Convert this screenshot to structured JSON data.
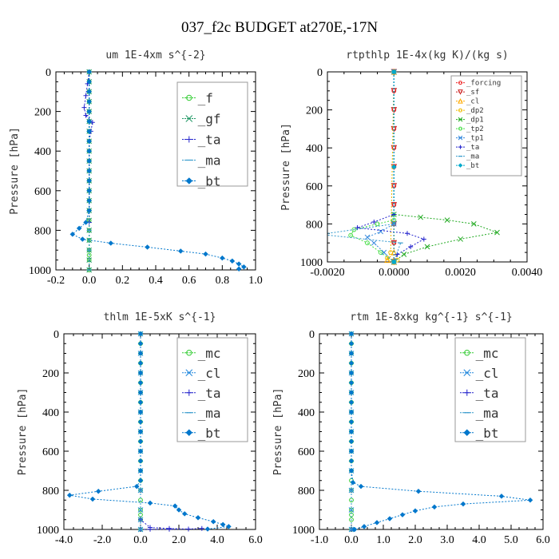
{
  "figure_title": "037_f2c  BUDGET at270E,-17N",
  "chart_data": [
    {
      "id": "um",
      "type": "line",
      "title": "um  1E-4xm s^{-2}",
      "ylabel": "Pressure [hPa]",
      "xlim": [
        -0.2,
        1.0
      ],
      "ylim": [
        0,
        1000
      ],
      "y_inverted": true,
      "xticks": [
        "-0.2",
        "0.0",
        "0.2",
        "0.4",
        "0.6",
        "0.8",
        "1.0"
      ],
      "yticks": [
        "0",
        "200",
        "400",
        "600",
        "800",
        "1000"
      ],
      "legend_position": "top-right",
      "series": [
        {
          "name": "_f",
          "color": "#33cc33",
          "marker": "circle",
          "x": [
            0,
            0,
            0,
            0,
            0,
            0,
            0,
            0,
            0,
            0,
            0,
            0,
            0,
            0,
            0,
            0,
            0,
            0,
            0,
            0,
            0,
            0
          ],
          "y": [
            0,
            50,
            100,
            150,
            200,
            250,
            300,
            350,
            400,
            450,
            500,
            550,
            600,
            650,
            700,
            750,
            800,
            850,
            900,
            925,
            950,
            1000
          ]
        },
        {
          "name": "_gf",
          "color": "#229966",
          "marker": "x",
          "x": [
            0,
            0,
            0,
            0,
            0,
            0,
            0,
            0,
            0,
            0,
            0,
            0,
            0,
            0,
            0,
            0,
            0,
            0,
            0,
            0,
            0
          ],
          "y": [
            0,
            50,
            100,
            150,
            200,
            250,
            300,
            350,
            400,
            450,
            500,
            550,
            600,
            650,
            700,
            750,
            800,
            850,
            900,
            950,
            1000
          ]
        },
        {
          "name": "_ta",
          "color": "#2222cc",
          "marker": "plus",
          "x": [
            0,
            -0.01,
            -0.02,
            -0.03,
            -0.02,
            0.02,
            0.01,
            0,
            0,
            0,
            0,
            0,
            0,
            0,
            0,
            0
          ],
          "y": [
            0,
            60,
            120,
            180,
            220,
            255,
            300,
            350,
            400,
            450,
            500,
            550,
            600,
            650,
            700,
            760
          ]
        },
        {
          "name": "_ma",
          "color": "#3399cc",
          "marker": "dash",
          "x": [
            0,
            0,
            0,
            0,
            0,
            0,
            0,
            0,
            0,
            0,
            0
          ],
          "y": [
            0,
            100,
            200,
            300,
            400,
            500,
            600,
            700,
            800,
            900,
            1000
          ]
        },
        {
          "name": "_bt",
          "color": "#0077cc",
          "marker": "diamond",
          "x": [
            0,
            0,
            0,
            0,
            0,
            0,
            0,
            0,
            0,
            0,
            0,
            0,
            0,
            0,
            0,
            -0.02,
            -0.06,
            -0.1,
            -0.04,
            0.13,
            0.35,
            0.55,
            0.7,
            0.8,
            0.86,
            0.9,
            0.93,
            0.9
          ],
          "y": [
            0,
            50,
            100,
            150,
            200,
            250,
            300,
            350,
            400,
            450,
            500,
            550,
            600,
            650,
            700,
            760,
            790,
            820,
            845,
            865,
            885,
            905,
            920,
            940,
            955,
            970,
            985,
            995
          ]
        }
      ]
    },
    {
      "id": "rtpthlp",
      "type": "line",
      "title": "rtpthlp  1E-4x(kg K)/(kg s)",
      "ylabel": "Pressure [hPa]",
      "xlim": [
        -0.002,
        0.004
      ],
      "ylim": [
        0,
        1000
      ],
      "y_inverted": true,
      "xticks": [
        "-0.0020",
        "0.0000",
        "0.0020",
        "0.0040"
      ],
      "yticks": [
        "0",
        "200",
        "400",
        "600",
        "800",
        "1000"
      ],
      "legend_position": "top-right",
      "series": [
        {
          "name": "_forcing",
          "color": "#ee2222",
          "marker": "circle",
          "x": [
            0,
            0,
            0,
            0,
            0,
            0,
            0,
            0,
            0,
            0,
            0
          ],
          "y": [
            0,
            100,
            200,
            300,
            400,
            500,
            600,
            700,
            800,
            900,
            1000
          ]
        },
        {
          "name": "_sf",
          "color": "#cc2222",
          "marker": "triangle-down",
          "x": [
            0,
            0,
            0,
            0,
            0,
            0,
            0,
            0,
            0,
            0,
            0
          ],
          "y": [
            0,
            100,
            200,
            300,
            400,
            500,
            600,
            700,
            800,
            900,
            1000
          ]
        },
        {
          "name": "_cl",
          "color": "#ffaa00",
          "marker": "triangle",
          "x": [
            0,
            0,
            -0.0002,
            0
          ],
          "y": [
            0,
            950,
            990,
            1000
          ]
        },
        {
          "name": "_dp2",
          "color": "#eebb00",
          "marker": "circle",
          "x": [
            0,
            -0.0001,
            -0.0002,
            0.0001,
            0
          ],
          "y": [
            0,
            950,
            980,
            990,
            1000
          ]
        },
        {
          "name": "_dp1",
          "color": "#22aa22",
          "marker": "x",
          "x": [
            0,
            0,
            0.0008,
            0.0016,
            0.0024,
            0.0031,
            0.002,
            0.001,
            0.0003,
            0
          ],
          "y": [
            0,
            750,
            765,
            780,
            800,
            845,
            880,
            920,
            960,
            1000
          ]
        },
        {
          "name": "_tp2",
          "color": "#44dd44",
          "marker": "circle",
          "x": [
            0,
            0,
            -0.0005,
            -0.0012,
            -0.0013,
            -0.0008,
            -0.0004,
            0
          ],
          "y": [
            0,
            780,
            800,
            830,
            860,
            900,
            950,
            1000
          ]
        },
        {
          "name": "_tp1",
          "color": "#3388dd",
          "marker": "x",
          "x": [
            0,
            0,
            -0.0004,
            -0.0008,
            -0.0006,
            -0.0003,
            0
          ],
          "y": [
            0,
            800,
            840,
            870,
            900,
            950,
            1000
          ]
        },
        {
          "name": "_ta",
          "color": "#2222cc",
          "marker": "plus",
          "x": [
            0,
            0,
            -0.0006,
            -0.0011,
            0.0004,
            0.0009,
            0.0005,
            0.0001,
            0
          ],
          "y": [
            0,
            750,
            790,
            820,
            850,
            880,
            920,
            960,
            1000
          ]
        },
        {
          "name": "_ma",
          "color": "#3399cc",
          "marker": "dash",
          "x": [
            0,
            0,
            -0.0022,
            0.0002,
            0
          ],
          "y": [
            0,
            800,
            855,
            900,
            1000
          ]
        },
        {
          "name": "_bt",
          "color": "#00aacc",
          "marker": "diamond",
          "x": [
            0,
            0,
            0
          ],
          "y": [
            0,
            500,
            1000
          ]
        }
      ]
    },
    {
      "id": "thlm",
      "type": "line",
      "title": "thlm  1E-5xK s^{-1}",
      "ylabel": "Pressure [hPa]",
      "xlim": [
        -4.0,
        6.0
      ],
      "ylim": [
        0,
        1000
      ],
      "y_inverted": true,
      "xticks": [
        "-4.0",
        "-2.0",
        "0.0",
        "2.0",
        "4.0",
        "6.0"
      ],
      "yticks": [
        "0",
        "200",
        "400",
        "600",
        "800",
        "1000"
      ],
      "legend_position": "top-right",
      "series": [
        {
          "name": "_mc",
          "color": "#33cc33",
          "marker": "circle",
          "x": [
            0,
            0,
            0,
            0,
            0,
            0,
            0,
            0,
            0,
            0,
            0,
            0,
            0,
            0,
            0,
            0,
            0,
            0,
            0,
            0,
            0,
            0
          ],
          "y": [
            0,
            50,
            100,
            150,
            200,
            250,
            300,
            350,
            400,
            450,
            500,
            550,
            600,
            650,
            700,
            750,
            800,
            850,
            900,
            925,
            950,
            1000
          ]
        },
        {
          "name": "_cl",
          "color": "#2288dd",
          "marker": "x",
          "x": [
            0,
            0,
            0,
            0,
            0,
            0,
            0,
            0,
            0,
            0,
            0,
            0
          ],
          "y": [
            0,
            100,
            200,
            300,
            400,
            500,
            600,
            700,
            800,
            900,
            950,
            1000
          ]
        },
        {
          "name": "_ta",
          "color": "#2222cc",
          "marker": "plus",
          "x": [
            0,
            0,
            0,
            0.5,
            1.5,
            2.5,
            3.2,
            2.5,
            1.5,
            0.5,
            0
          ],
          "y": [
            0,
            800,
            950,
            990,
            995,
            998,
            995,
            998,
            999,
            999,
            1000
          ]
        },
        {
          "name": "_ma",
          "color": "#3399cc",
          "marker": "dash",
          "x": [
            0,
            0,
            0,
            0,
            0,
            0
          ],
          "y": [
            0,
            200,
            400,
            600,
            800,
            1000
          ]
        },
        {
          "name": "_bt",
          "color": "#0077cc",
          "marker": "diamond",
          "x": [
            0,
            0,
            0,
            0,
            0,
            0,
            0,
            0,
            0,
            0,
            0,
            0,
            0,
            0,
            0,
            0,
            -0.2,
            -2.2,
            -3.7,
            -2.5,
            0.5,
            1.8,
            2.0,
            2.3,
            3.0,
            3.8,
            4.3,
            4.6,
            3.5
          ],
          "y": [
            0,
            50,
            100,
            150,
            200,
            250,
            300,
            350,
            400,
            450,
            500,
            550,
            600,
            650,
            700,
            750,
            780,
            805,
            825,
            845,
            865,
            880,
            900,
            920,
            940,
            960,
            975,
            985,
            998
          ]
        }
      ]
    },
    {
      "id": "rtm",
      "type": "line",
      "title": "rtm  1E-8xkg kg^{-1} s^{-1}",
      "ylabel": "Pressure [hPa]",
      "xlim": [
        -1.0,
        6.0
      ],
      "ylim": [
        0,
        1000
      ],
      "y_inverted": true,
      "xticks": [
        "-1.0",
        "0.0",
        "1.0",
        "2.0",
        "3.0",
        "4.0",
        "5.0",
        "6.0"
      ],
      "yticks": [
        "0",
        "200",
        "400",
        "600",
        "800",
        "1000"
      ],
      "legend_position": "top-right",
      "series": [
        {
          "name": "_mc",
          "color": "#33cc33",
          "marker": "circle",
          "x": [
            0,
            0,
            0,
            0,
            0,
            0,
            0,
            0,
            0,
            0,
            0,
            0,
            0,
            0,
            0,
            0,
            0,
            0,
            0,
            0,
            0,
            0
          ],
          "y": [
            0,
            50,
            100,
            150,
            200,
            250,
            300,
            350,
            400,
            450,
            500,
            550,
            600,
            650,
            700,
            750,
            800,
            850,
            900,
            925,
            950,
            1000
          ]
        },
        {
          "name": "_cl",
          "color": "#2288dd",
          "marker": "x",
          "x": [
            0,
            0,
            0,
            0,
            0,
            0,
            0,
            0,
            0,
            0,
            0
          ],
          "y": [
            0,
            100,
            200,
            300,
            400,
            500,
            600,
            700,
            800,
            900,
            1000
          ]
        },
        {
          "name": "_ta",
          "color": "#2222cc",
          "marker": "plus",
          "x": [
            0,
            0,
            0,
            0,
            0,
            0
          ],
          "y": [
            0,
            200,
            400,
            600,
            800,
            1000
          ]
        },
        {
          "name": "_ma",
          "color": "#3399cc",
          "marker": "dash",
          "x": [
            0,
            0,
            0,
            0,
            0,
            0
          ],
          "y": [
            0,
            200,
            400,
            600,
            800,
            1000
          ]
        },
        {
          "name": "_bt",
          "color": "#0077cc",
          "marker": "diamond",
          "x": [
            0,
            0,
            0,
            0,
            0,
            0,
            0,
            0,
            0,
            0,
            0,
            0,
            0,
            0,
            0,
            0.05,
            0.3,
            2.1,
            4.7,
            5.6,
            3.5,
            2.6,
            2.0,
            1.6,
            1.2,
            0.8,
            0.4,
            0.1
          ],
          "y": [
            0,
            50,
            100,
            150,
            200,
            250,
            300,
            350,
            400,
            450,
            500,
            550,
            600,
            650,
            700,
            760,
            780,
            805,
            830,
            850,
            870,
            885,
            905,
            925,
            945,
            965,
            985,
            1000
          ]
        }
      ]
    }
  ]
}
